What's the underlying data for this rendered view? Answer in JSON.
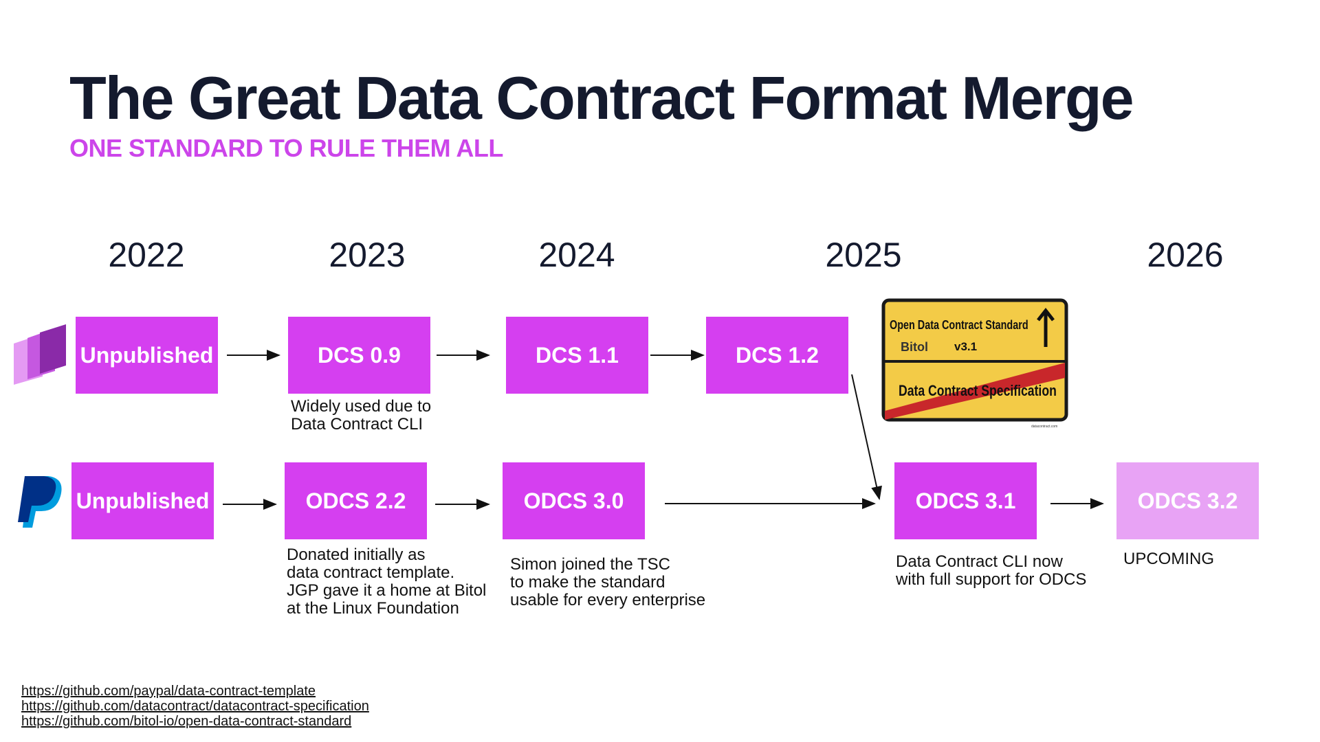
{
  "header": {
    "title": "The Great Data Contract Format Merge",
    "subtitle": "ONE STANDARD TO RULE THEM ALL"
  },
  "years": [
    "2022",
    "2023",
    "2024",
    "2025",
    "2026"
  ],
  "rows": [
    {
      "boxes": [
        "Unpublished",
        "DCS 0.9",
        "DCS 1.1",
        "DCS 1.2"
      ]
    },
    {
      "boxes": [
        "Unpublished",
        "ODCS 2.2",
        "ODCS 3.0",
        "ODCS 3.1",
        "ODCS 3.2"
      ]
    }
  ],
  "notes": [
    [
      "Widely used due to",
      "Data Contract CLI"
    ],
    [
      "Donated initially as",
      "data contract template.",
      "JGP gave it a home at Bitol",
      "at the Linux Foundation"
    ],
    [
      "Simon joined the TSC",
      "to make the standard",
      "usable for every enterprise"
    ],
    [
      "Data Contract CLI now",
      "with full support for ODCS"
    ],
    [
      "UPCOMING"
    ]
  ],
  "sign": {
    "top": "Open Data Contract Standard",
    "brand": "Bitol",
    "version": "v3.1",
    "bottom": "Data Contract Specification",
    "credit": "datacontract.com"
  },
  "links": [
    "https://github.com/paypal/data-contract-template",
    "https://github.com/datacontract/datacontract-specification",
    "https://github.com/bitol-io/open-data-contract-standard"
  ]
}
